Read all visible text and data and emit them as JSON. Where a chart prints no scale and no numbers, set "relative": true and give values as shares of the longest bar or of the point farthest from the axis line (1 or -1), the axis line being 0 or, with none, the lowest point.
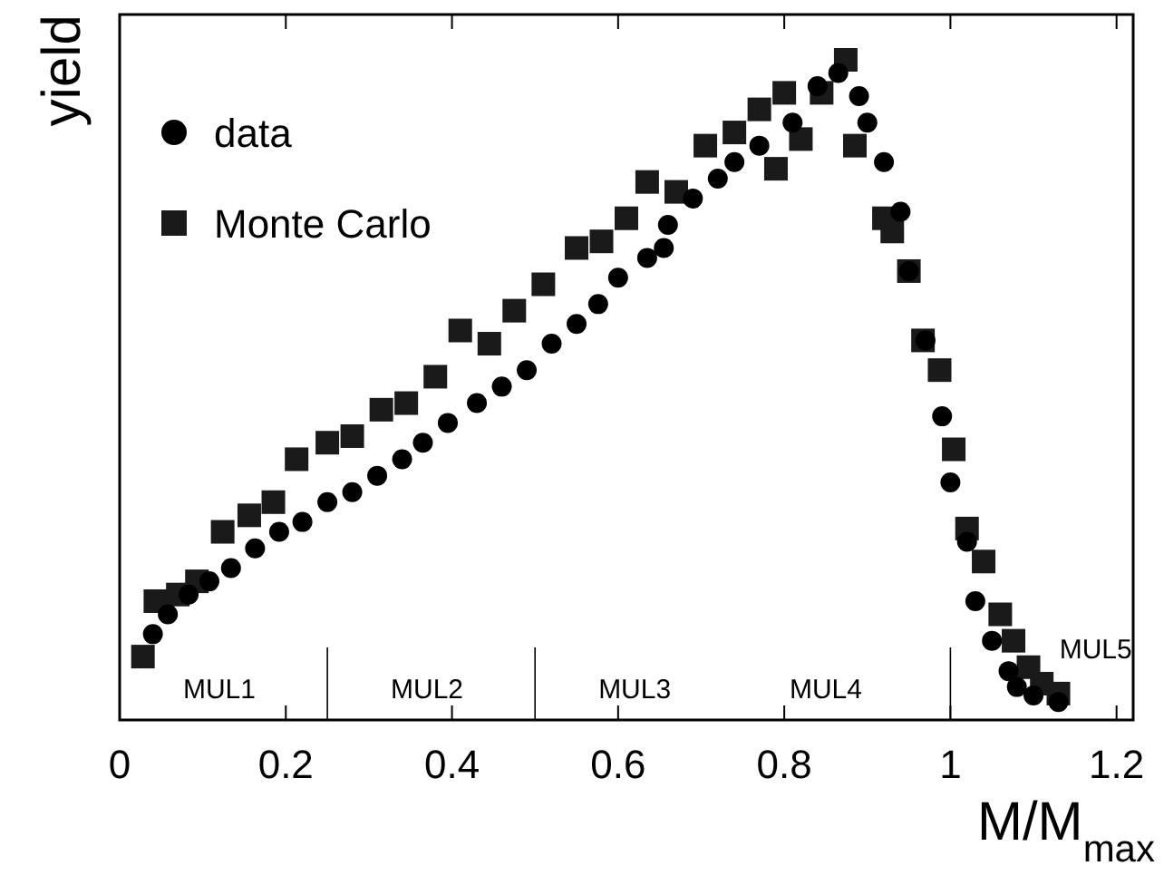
{
  "chart_data": {
    "type": "scatter",
    "xlabel": "M/M$_{max}$",
    "ylabel": "yield",
    "relative": true,
    "xlim": [
      0,
      1.22
    ],
    "xticks": [
      0,
      0.2,
      0.4,
      0.6,
      0.8,
      1,
      1.2
    ],
    "legend": "top left",
    "grid": false,
    "series": [
      {
        "name": "data",
        "color": "#000000",
        "marker": "circle",
        "x": [
          0.04,
          0.058,
          0.083,
          0.108,
          0.134,
          0.163,
          0.192,
          0.22,
          0.25,
          0.28,
          0.31,
          0.34,
          0.365,
          0.395,
          0.43,
          0.46,
          0.49,
          0.52,
          0.55,
          0.576,
          0.6,
          0.635,
          0.655,
          0.66,
          0.69,
          0.72,
          0.74,
          0.77,
          0.81,
          0.84,
          0.865,
          0.89,
          0.9,
          0.92,
          0.94,
          0.95,
          0.97,
          0.99,
          1.0,
          1.02,
          1.03,
          1.05,
          1.07,
          1.08,
          1.1,
          1.13
        ],
        "values": [
          0.13,
          0.16,
          0.19,
          0.21,
          0.23,
          0.26,
          0.285,
          0.3,
          0.33,
          0.345,
          0.37,
          0.395,
          0.42,
          0.45,
          0.48,
          0.505,
          0.53,
          0.57,
          0.6,
          0.63,
          0.67,
          0.7,
          0.715,
          0.75,
          0.79,
          0.82,
          0.845,
          0.87,
          0.905,
          0.96,
          0.98,
          0.945,
          0.905,
          0.845,
          0.77,
          0.68,
          0.575,
          0.46,
          0.36,
          0.27,
          0.18,
          0.12,
          0.074,
          0.05,
          0.037,
          0.027
        ]
      },
      {
        "name": "Monte Carlo",
        "color": "#1a1a1a",
        "marker": "square",
        "x": [
          0.028,
          0.043,
          0.07,
          0.093,
          0.124,
          0.156,
          0.185,
          0.213,
          0.25,
          0.28,
          0.315,
          0.345,
          0.38,
          0.41,
          0.445,
          0.475,
          0.51,
          0.55,
          0.58,
          0.61,
          0.635,
          0.67,
          0.705,
          0.74,
          0.77,
          0.79,
          0.8,
          0.82,
          0.845,
          0.874,
          0.885,
          0.92,
          0.93,
          0.95,
          0.967,
          0.987,
          1.004,
          1.02,
          1.04,
          1.06,
          1.076,
          1.094,
          1.11,
          1.13
        ],
        "values": [
          0.096,
          0.18,
          0.19,
          0.21,
          0.285,
          0.31,
          0.33,
          0.395,
          0.42,
          0.43,
          0.47,
          0.48,
          0.52,
          0.59,
          0.57,
          0.62,
          0.66,
          0.715,
          0.725,
          0.76,
          0.815,
          0.8,
          0.87,
          0.89,
          0.925,
          0.835,
          0.95,
          0.88,
          0.95,
          1.0,
          0.87,
          0.76,
          0.74,
          0.68,
          0.575,
          0.53,
          0.41,
          0.29,
          0.24,
          0.16,
          0.12,
          0.08,
          0.055,
          0.04
        ]
      }
    ],
    "ref_lines": [
      {
        "axis": "x",
        "value": 0.25
      },
      {
        "axis": "x",
        "value": 0.5
      },
      {
        "axis": "x",
        "value": 1.0
      }
    ],
    "annotations": [
      "MUL1",
      "MUL2",
      "MUL3",
      "MUL4",
      "MUL5"
    ]
  }
}
